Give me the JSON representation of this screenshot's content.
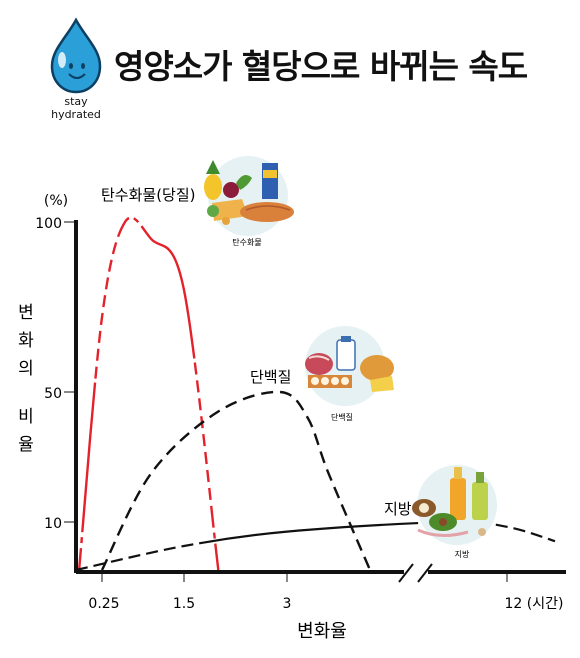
{
  "header": {
    "title": "영양소가 혈당으로 바뀌는 속도",
    "logo_line1": "stay",
    "logo_line2": "hydrated"
  },
  "colors": {
    "carb": "#e3222b",
    "protein": "#111111",
    "fat": "#111111",
    "drop": "#2a9fd8"
  },
  "icons": [
    "water-drop-icon",
    "carb-food-icon",
    "protein-food-icon",
    "fat-food-icon"
  ],
  "chart_data": {
    "type": "line",
    "title": "영양소가 혈당으로 바뀌는 속도",
    "xlabel": "변화율",
    "ylabel": "변화의 비율",
    "y_unit": "(%)",
    "x_ticks": [
      "0.25",
      "1.5",
      "3",
      "12 (시간)"
    ],
    "y_ticks": [
      10,
      50,
      100
    ],
    "axis_break": "x",
    "grid": false,
    "series": [
      {
        "name": "탄수화물(당질)",
        "color": "#e3222b",
        "points": [
          [
            0.03,
            0
          ],
          [
            0.25,
            72
          ],
          [
            0.6,
            100
          ],
          [
            1.0,
            95
          ],
          [
            1.5,
            80
          ],
          [
            2.0,
            0
          ]
        ]
      },
      {
        "name": "단백질",
        "color": "#111111",
        "points": [
          [
            0.25,
            0
          ],
          [
            1.0,
            25
          ],
          [
            2.0,
            44
          ],
          [
            2.9,
            50
          ],
          [
            3.5,
            42
          ],
          [
            4.0,
            25
          ],
          [
            5.0,
            0
          ]
        ]
      },
      {
        "name": "지방",
        "color": "#111111",
        "points": [
          [
            0,
            0
          ],
          [
            1.5,
            5
          ],
          [
            3,
            8
          ],
          [
            9,
            10
          ],
          [
            12,
            9
          ],
          [
            14,
            6
          ]
        ]
      }
    ],
    "image_captions": {
      "carb": "탄수화물",
      "protein": "단백질",
      "fat": "지방"
    }
  }
}
